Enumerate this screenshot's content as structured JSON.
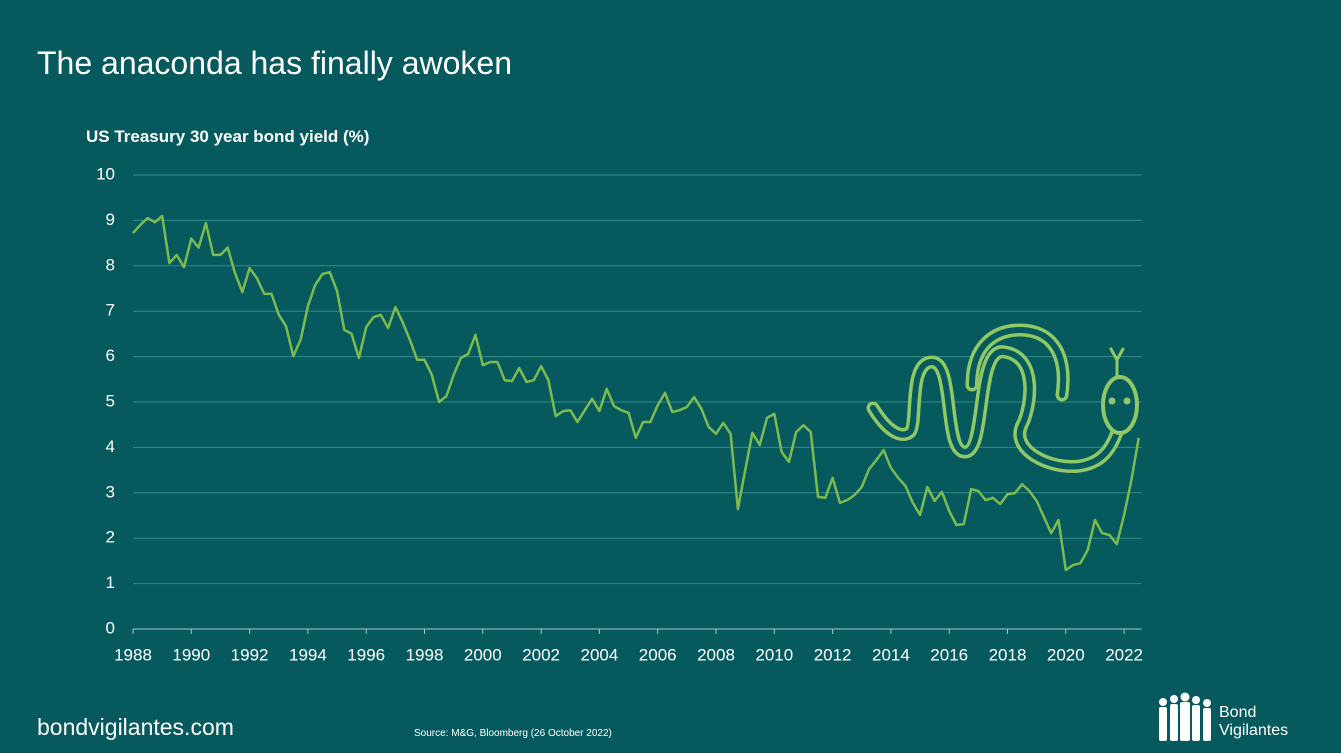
{
  "chart_data": {
    "type": "line",
    "title": "The anaconda has finally awoken",
    "y_label": "US Treasury 30 year bond yield (%)",
    "website": "bondvigilantes.com",
    "source": "Source: M&G, Bloomberg (26 October 2022)",
    "logo": [
      "Bond",
      "Vigilantes"
    ],
    "color": "#7dbb50",
    "grid": true,
    "xlim": [
      1988,
      2022.6
    ],
    "xticks": [
      1988,
      1990,
      1992,
      1994,
      1996,
      1998,
      2000,
      2002,
      2004,
      2006,
      2008,
      2010,
      2012,
      2014,
      2016,
      2018,
      2020,
      2022
    ],
    "ylim": [
      0,
      10
    ],
    "yticks": [
      0,
      1,
      2,
      3,
      4,
      5,
      6,
      7,
      8,
      9,
      10
    ],
    "x": [
      1988,
      1988.25,
      1988.5,
      1988.75,
      1989,
      1989.25,
      1989.5,
      1989.75,
      1990,
      1990.25,
      1990.5,
      1990.75,
      1991,
      1991.25,
      1991.5,
      1991.75,
      1992,
      1992.25,
      1992.5,
      1992.75,
      1993,
      1993.25,
      1993.5,
      1993.75,
      1994,
      1994.25,
      1994.5,
      1994.75,
      1995,
      1995.25,
      1995.5,
      1995.75,
      1996,
      1996.25,
      1996.5,
      1996.75,
      1997,
      1997.25,
      1997.5,
      1997.75,
      1998,
      1998.25,
      1998.5,
      1998.75,
      1999,
      1999.25,
      1999.5,
      1999.75,
      2000,
      2000.25,
      2000.5,
      2000.75,
      2001,
      2001.25,
      2001.5,
      2001.75,
      2002,
      2002.25,
      2002.5,
      2002.75,
      2003,
      2003.25,
      2003.5,
      2003.75,
      2004,
      2004.25,
      2004.5,
      2004.75,
      2005,
      2005.25,
      2005.5,
      2005.75,
      2006,
      2006.25,
      2006.5,
      2006.75,
      2007,
      2007.25,
      2007.5,
      2007.75,
      2008,
      2008.25,
      2008.5,
      2008.75,
      2009,
      2009.25,
      2009.5,
      2009.75,
      2010,
      2010.25,
      2010.5,
      2010.75,
      2011,
      2011.25,
      2011.5,
      2011.75,
      2012,
      2012.25,
      2012.5,
      2012.75,
      2013,
      2013.25,
      2013.5,
      2013.75,
      2014,
      2014.25,
      2014.5,
      2014.75,
      2015,
      2015.25,
      2015.5,
      2015.75,
      2016,
      2016.25,
      2016.5,
      2016.75,
      2017,
      2017.25,
      2017.5,
      2017.75,
      2018,
      2018.25,
      2018.5,
      2018.75,
      2019,
      2019.25,
      2019.5,
      2019.75,
      2020,
      2020.25,
      2020.5,
      2020.75,
      2021,
      2021.25,
      2021.5,
      2021.75,
      2022,
      2022.25,
      2022.5
    ],
    "values": [
      8.72,
      8.9,
      9.05,
      8.96,
      9.1,
      8.06,
      8.24,
      7.97,
      8.6,
      8.4,
      8.94,
      8.24,
      8.24,
      8.4,
      7.84,
      7.42,
      7.95,
      7.73,
      7.38,
      7.38,
      6.92,
      6.67,
      6.01,
      6.37,
      7.11,
      7.58,
      7.82,
      7.86,
      7.44,
      6.59,
      6.5,
      5.97,
      6.65,
      6.87,
      6.92,
      6.63,
      7.09,
      6.76,
      6.37,
      5.93,
      5.93,
      5.6,
      5.0,
      5.13,
      5.6,
      5.97,
      6.06,
      6.48,
      5.81,
      5.88,
      5.88,
      5.48,
      5.46,
      5.75,
      5.44,
      5.48,
      5.79,
      5.48,
      4.69,
      4.8,
      4.82,
      4.56,
      4.82,
      5.07,
      4.8,
      5.29,
      4.91,
      4.82,
      4.76,
      4.21,
      4.56,
      4.56,
      4.93,
      5.2,
      4.78,
      4.82,
      4.89,
      5.11,
      4.85,
      4.45,
      4.3,
      4.54,
      4.3,
      2.64,
      3.5,
      4.32,
      4.05,
      4.65,
      4.74,
      3.9,
      3.68,
      4.34,
      4.49,
      4.34,
      2.91,
      2.89,
      3.33,
      2.78,
      2.84,
      2.95,
      3.13,
      3.52,
      3.72,
      3.94,
      3.55,
      3.33,
      3.15,
      2.78,
      2.51,
      3.13,
      2.82,
      3.02,
      2.6,
      2.29,
      2.31,
      3.08,
      3.04,
      2.84,
      2.89,
      2.75,
      2.97,
      2.99,
      3.19,
      3.04,
      2.82,
      2.47,
      2.11,
      2.4,
      1.3,
      1.41,
      1.45,
      1.74,
      2.4,
      2.11,
      2.07,
      1.87,
      2.51,
      3.28,
      4.21
    ]
  }
}
